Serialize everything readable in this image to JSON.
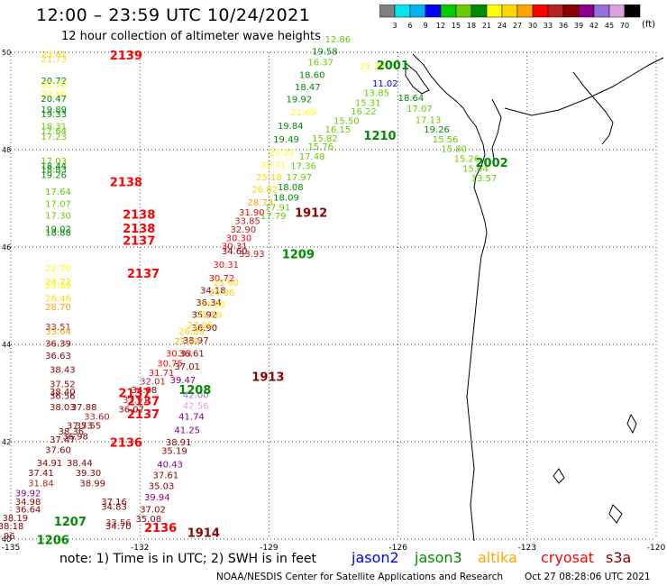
{
  "title": "12:00 – 23:59 UTC 10/24/2021",
  "subtitle": "12 hour collection of altimeter wave heights",
  "unit": "(ft)",
  "color_scale": {
    "labels": [
      "3",
      "6",
      "9",
      "12",
      "15",
      "18",
      "21",
      "24",
      "27",
      "30",
      "33",
      "36",
      "39",
      "42",
      "45",
      "70"
    ],
    "colors": [
      "#808080",
      "#00e5ee",
      "#00b2ee",
      "#0000ff",
      "#00cd00",
      "#66cd00",
      "#008b00",
      "#ffff00",
      "#ffd700",
      "#ffa500",
      "#ff0000",
      "#b22222",
      "#8b0000",
      "#8b008b",
      "#9370db",
      "#dda0dd",
      "#000000"
    ]
  },
  "axes": {
    "lon_labels": [
      "-135",
      "-132",
      "-129",
      "-126",
      "-123",
      "-120"
    ],
    "lat_labels": [
      "50",
      "48",
      "46",
      "44",
      "42",
      "40"
    ]
  },
  "note": "note:  1) Time is in UTC;  2) SWH is in feet",
  "satellites": [
    {
      "name": "jason2",
      "color": "#0000ff"
    },
    {
      "name": "jason3",
      "color": "#008b00"
    },
    {
      "name": "altika",
      "color": "#ffa500"
    },
    {
      "name": "cryosat",
      "color": "#ff0000"
    },
    {
      "name": "s3a",
      "color": "#8b0000"
    }
  ],
  "credit": "NOAA/NESDIS Center for Satellite Applications and Research",
  "timestamp": "Oct 27 08:28:06 UTC 2021",
  "observations": [
    {
      "lon": -134.3,
      "lat": 49.9,
      "v": "23.61",
      "c": "#ffd700"
    },
    {
      "lon": -134.3,
      "lat": 49.8,
      "v": "21.73",
      "c": "#ffd700"
    },
    {
      "lon": -134.3,
      "lat": 49.35,
      "v": "20.72",
      "c": "#008b00"
    },
    {
      "lon": -134.3,
      "lat": 49.27,
      "v": "22.70",
      "c": "#ffff00"
    },
    {
      "lon": -134.3,
      "lat": 49.07,
      "v": "22.56",
      "c": "#ffff00"
    },
    {
      "lon": -134.3,
      "lat": 48.98,
      "v": "20.47",
      "c": "#008b00"
    },
    {
      "lon": -134.3,
      "lat": 48.76,
      "v": "19.89",
      "c": "#008b00"
    },
    {
      "lon": -134.3,
      "lat": 48.67,
      "v": "19.33",
      "c": "#008b00"
    },
    {
      "lon": -134.3,
      "lat": 48.42,
      "v": "18.31",
      "c": "#66cd00"
    },
    {
      "lon": -134.3,
      "lat": 48.32,
      "v": "17.64",
      "c": "#66cd00"
    },
    {
      "lon": -134.3,
      "lat": 48.2,
      "v": "17.23",
      "c": "#66cd00"
    },
    {
      "lon": -134.3,
      "lat": 47.7,
      "v": "17.03",
      "c": "#66cd00"
    },
    {
      "lon": -134.3,
      "lat": 47.6,
      "v": "18.44",
      "c": "#008b00"
    },
    {
      "lon": -134.3,
      "lat": 47.53,
      "v": "18.83",
      "c": "#008b00"
    },
    {
      "lon": -134.3,
      "lat": 47.42,
      "v": "19.26",
      "c": "#008b00"
    },
    {
      "lon": -134.2,
      "lat": 47.07,
      "v": "17.64",
      "c": "#66cd00"
    },
    {
      "lon": -134.2,
      "lat": 46.82,
      "v": "17.07",
      "c": "#66cd00"
    },
    {
      "lon": -134.2,
      "lat": 46.58,
      "v": "17.30",
      "c": "#66cd00"
    },
    {
      "lon": -134.2,
      "lat": 46.31,
      "v": "19.02",
      "c": "#008b00"
    },
    {
      "lon": -134.2,
      "lat": 46.23,
      "v": "18.88",
      "c": "#008b00"
    },
    {
      "lon": -134.2,
      "lat": 45.5,
      "v": "22.79",
      "c": "#ffff00"
    },
    {
      "lon": -134.2,
      "lat": 45.22,
      "v": "24.72",
      "c": "#ffd700"
    },
    {
      "lon": -134.2,
      "lat": 45.15,
      "v": "23.89",
      "c": "#ffff00"
    },
    {
      "lon": -134.2,
      "lat": 44.88,
      "v": "26.46",
      "c": "#ffd700"
    },
    {
      "lon": -134.2,
      "lat": 44.7,
      "v": "28.70",
      "c": "#ffa500"
    },
    {
      "lon": -134.2,
      "lat": 44.3,
      "v": "33.51",
      "c": "#b22222"
    },
    {
      "lon": -134.2,
      "lat": 44.2,
      "v": "33.64",
      "c": "#ffa500"
    },
    {
      "lon": -134.2,
      "lat": 43.95,
      "v": "36.39",
      "c": "#8b0000"
    },
    {
      "lon": -134.2,
      "lat": 43.7,
      "v": "36.63",
      "c": "#8b0000"
    },
    {
      "lon": -134.1,
      "lat": 43.42,
      "v": "38.43",
      "c": "#8b0000"
    },
    {
      "lon": -134.1,
      "lat": 43.12,
      "v": "37.52",
      "c": "#8b0000"
    },
    {
      "lon": -134.1,
      "lat": 42.96,
      "v": "38.40",
      "c": "#8b0000"
    },
    {
      "lon": -134.1,
      "lat": 42.88,
      "v": "36.56",
      "c": "#8b0000"
    },
    {
      "lon": -134.1,
      "lat": 42.65,
      "v": "38.03",
      "c": "#8b0000"
    },
    {
      "lon": -133.6,
      "lat": 42.65,
      "v": "37.88",
      "c": "#8b0000"
    },
    {
      "lon": -133.3,
      "lat": 42.45,
      "v": "33.60",
      "c": "#b22222"
    },
    {
      "lon": -133.7,
      "lat": 42.27,
      "v": "37.73",
      "c": "#8b0000"
    },
    {
      "lon": -133.5,
      "lat": 42.27,
      "v": "35.55",
      "c": "#8b0000"
    },
    {
      "lon": -133.9,
      "lat": 42.15,
      "v": "38.36",
      "c": "#8b0000"
    },
    {
      "lon": -133.8,
      "lat": 42.05,
      "v": "36.98",
      "c": "#8b0000"
    },
    {
      "lon": -134.1,
      "lat": 41.98,
      "v": "37.47",
      "c": "#8b0000"
    },
    {
      "lon": -134.2,
      "lat": 41.77,
      "v": "37.60",
      "c": "#8b0000"
    },
    {
      "lon": -134.4,
      "lat": 41.5,
      "v": "34.91",
      "c": "#8b0000"
    },
    {
      "lon": -133.7,
      "lat": 41.5,
      "v": "38.44",
      "c": "#8b0000"
    },
    {
      "lon": -134.6,
      "lat": 41.3,
      "v": "37.41",
      "c": "#8b0000"
    },
    {
      "lon": -133.5,
      "lat": 41.3,
      "v": "39.30",
      "c": "#8b0000"
    },
    {
      "lon": -134.6,
      "lat": 41.08,
      "v": "31.84",
      "c": "#b22222"
    },
    {
      "lon": -133.4,
      "lat": 41.08,
      "v": "38.99",
      "c": "#8b0000"
    },
    {
      "lon": -134.9,
      "lat": 40.88,
      "v": "39.92",
      "c": "#8b008b"
    },
    {
      "lon": -134.9,
      "lat": 40.7,
      "v": "34.98",
      "c": "#8b0000"
    },
    {
      "lon": -132.9,
      "lat": 40.7,
      "v": "37.16",
      "c": "#8b0000"
    },
    {
      "lon": -134.9,
      "lat": 40.55,
      "v": "36.64",
      "c": "#8b0000"
    },
    {
      "lon": -132.9,
      "lat": 40.6,
      "v": "34.83",
      "c": "#8b0000"
    },
    {
      "lon": -135.2,
      "lat": 40.37,
      "v": "38.19",
      "c": "#8b0000"
    },
    {
      "lon": -135.3,
      "lat": 40.2,
      "v": "38.18",
      "c": "#8b0000"
    },
    {
      "lon": -132.8,
      "lat": 40.28,
      "v": "33.56",
      "c": "#b22222"
    },
    {
      "lon": -135.5,
      "lat": 40.0,
      "v": "34.96",
      "c": "#8b0000"
    },
    {
      "lon": -132.8,
      "lat": 40.2,
      "v": "34.70",
      "c": "#8b0000"
    },
    {
      "lon": -127.7,
      "lat": 50.2,
      "v": "12.86",
      "c": "#66cd00"
    },
    {
      "lon": -128.0,
      "lat": 49.95,
      "v": "19.58",
      "c": "#008b00"
    },
    {
      "lon": -128.1,
      "lat": 49.73,
      "v": "16.37",
      "c": "#66cd00"
    },
    {
      "lon": -128.3,
      "lat": 49.47,
      "v": "18.60",
      "c": "#008b00"
    },
    {
      "lon": -128.4,
      "lat": 49.22,
      "v": "18.47",
      "c": "#008b00"
    },
    {
      "lon": -128.6,
      "lat": 48.97,
      "v": "19.92",
      "c": "#008b00"
    },
    {
      "lon": -128.5,
      "lat": 48.7,
      "v": "21.69",
      "c": "#ffff00"
    },
    {
      "lon": -128.8,
      "lat": 48.43,
      "v": "19.84",
      "c": "#008b00"
    },
    {
      "lon": -128.9,
      "lat": 48.15,
      "v": "19.49",
      "c": "#008b00"
    },
    {
      "lon": -129.0,
      "lat": 47.88,
      "v": "22.22",
      "c": "#ffff00"
    },
    {
      "lon": -129.2,
      "lat": 47.62,
      "v": "22.71",
      "c": "#ffff00"
    },
    {
      "lon": -129.3,
      "lat": 47.37,
      "v": "25.18",
      "c": "#ffd700"
    },
    {
      "lon": -129.4,
      "lat": 47.12,
      "v": "26.82",
      "c": "#ffd700"
    },
    {
      "lon": -129.5,
      "lat": 46.85,
      "v": "28.73",
      "c": "#ffa500"
    },
    {
      "lon": -129.7,
      "lat": 46.65,
      "v": "31.90",
      "c": "#ff0000"
    },
    {
      "lon": -129.8,
      "lat": 46.47,
      "v": "33.85",
      "c": "#b22222"
    },
    {
      "lon": -129.9,
      "lat": 46.3,
      "v": "32.90",
      "c": "#b22222"
    },
    {
      "lon": -130.0,
      "lat": 46.12,
      "v": "30.30",
      "c": "#ff0000"
    },
    {
      "lon": -130.1,
      "lat": 45.95,
      "v": "30.31",
      "c": "#ff0000"
    },
    {
      "lon": -130.1,
      "lat": 45.85,
      "v": "34.60",
      "c": "#8b0000"
    },
    {
      "lon": -130.3,
      "lat": 45.57,
      "v": "30.31",
      "c": "#ff0000"
    },
    {
      "lon": -130.4,
      "lat": 45.3,
      "v": "30.72",
      "c": "#ff0000"
    },
    {
      "lon": -130.6,
      "lat": 45.05,
      "v": "34.18",
      "c": "#8b0000"
    },
    {
      "lon": -130.7,
      "lat": 44.8,
      "v": "36.34",
      "c": "#8b0000"
    },
    {
      "lon": -130.8,
      "lat": 44.55,
      "v": "35.92",
      "c": "#8b0000"
    },
    {
      "lon": -130.8,
      "lat": 44.28,
      "v": "36.90",
      "c": "#8b0000"
    },
    {
      "lon": -131.0,
      "lat": 44.02,
      "v": "38.97",
      "c": "#8b0000"
    },
    {
      "lon": -131.1,
      "lat": 43.75,
      "v": "36.61",
      "c": "#8b0000"
    },
    {
      "lon": -131.2,
      "lat": 43.48,
      "v": "37.01",
      "c": "#8b0000"
    },
    {
      "lon": -131.3,
      "lat": 43.2,
      "v": "39.47",
      "c": "#8b008b"
    },
    {
      "lon": -131.0,
      "lat": 42.9,
      "v": "42.00",
      "c": "#9370db"
    },
    {
      "lon": -131.0,
      "lat": 42.68,
      "v": "42.56",
      "c": "#dda0dd"
    },
    {
      "lon": -131.1,
      "lat": 42.45,
      "v": "41.74",
      "c": "#8b008b"
    },
    {
      "lon": -131.2,
      "lat": 42.18,
      "v": "41.25",
      "c": "#8b008b"
    },
    {
      "lon": -131.4,
      "lat": 41.93,
      "v": "38.91",
      "c": "#8b0000"
    },
    {
      "lon": -131.5,
      "lat": 41.75,
      "v": "35.19",
      "c": "#8b0000"
    },
    {
      "lon": -131.6,
      "lat": 41.47,
      "v": "40.43",
      "c": "#8b008b"
    },
    {
      "lon": -131.7,
      "lat": 41.25,
      "v": "37.61",
      "c": "#8b0000"
    },
    {
      "lon": -131.8,
      "lat": 41.03,
      "v": "35.03",
      "c": "#8b0000"
    },
    {
      "lon": -131.9,
      "lat": 40.8,
      "v": "39.94",
      "c": "#8b008b"
    },
    {
      "lon": -132.0,
      "lat": 40.55,
      "v": "37.02",
      "c": "#8b0000"
    },
    {
      "lon": -132.1,
      "lat": 40.35,
      "v": "35.08",
      "c": "#8b0000"
    },
    {
      "lon": -129.7,
      "lat": 45.8,
      "v": "33.93",
      "c": "#b22222"
    },
    {
      "lon": -130.3,
      "lat": 45.2,
      "v": "25.60",
      "c": "#ffd700"
    },
    {
      "lon": -130.4,
      "lat": 45.0,
      "v": "24.96",
      "c": "#ffd700"
    },
    {
      "lon": -130.6,
      "lat": 44.75,
      "v": "23.83",
      "c": "#ffff00"
    },
    {
      "lon": -130.7,
      "lat": 44.55,
      "v": "25.50",
      "c": "#ffd700"
    },
    {
      "lon": -130.9,
      "lat": 44.33,
      "v": "27.00",
      "c": "#ffd700"
    },
    {
      "lon": -131.1,
      "lat": 44.2,
      "v": "26.89",
      "c": "#ffd700"
    },
    {
      "lon": -131.2,
      "lat": 44.0,
      "v": "27.82",
      "c": "#ffa500"
    },
    {
      "lon": -131.4,
      "lat": 43.75,
      "v": "30.33",
      "c": "#ff0000"
    },
    {
      "lon": -131.6,
      "lat": 43.55,
      "v": "30.75",
      "c": "#ff0000"
    },
    {
      "lon": -131.8,
      "lat": 43.35,
      "v": "31.71",
      "c": "#ff0000"
    },
    {
      "lon": -132.0,
      "lat": 43.18,
      "v": "32.01",
      "c": "#b22222"
    },
    {
      "lon": -132.2,
      "lat": 43.0,
      "v": "34.08",
      "c": "#8b0000"
    },
    {
      "lon": -132.4,
      "lat": 42.8,
      "v": "33.91",
      "c": "#b22222"
    },
    {
      "lon": -132.5,
      "lat": 42.6,
      "v": "36.07",
      "c": "#8b0000"
    },
    {
      "lon": -126.9,
      "lat": 49.65,
      "v": "21.35",
      "c": "#ffff00"
    },
    {
      "lon": -126.6,
      "lat": 49.3,
      "v": "11.02",
      "c": "#0000ff"
    },
    {
      "lon": -126.8,
      "lat": 49.1,
      "v": "13.85",
      "c": "#66cd00"
    },
    {
      "lon": -127.0,
      "lat": 48.9,
      "v": "15.31",
      "c": "#66cd00"
    },
    {
      "lon": -127.1,
      "lat": 48.72,
      "v": "16.22",
      "c": "#66cd00"
    },
    {
      "lon": -127.5,
      "lat": 48.53,
      "v": "15.50",
      "c": "#66cd00"
    },
    {
      "lon": -127.7,
      "lat": 48.35,
      "v": "16.15",
      "c": "#66cd00"
    },
    {
      "lon": -128.0,
      "lat": 48.17,
      "v": "15.82",
      "c": "#66cd00"
    },
    {
      "lon": -128.1,
      "lat": 48.0,
      "v": "15.76",
      "c": "#66cd00"
    },
    {
      "lon": -128.3,
      "lat": 47.8,
      "v": "17.48",
      "c": "#66cd00"
    },
    {
      "lon": -128.5,
      "lat": 47.6,
      "v": "17.36",
      "c": "#66cd00"
    },
    {
      "lon": -128.6,
      "lat": 47.37,
      "v": "17.97",
      "c": "#66cd00"
    },
    {
      "lon": -128.8,
      "lat": 47.17,
      "v": "18.08",
      "c": "#008b00"
    },
    {
      "lon": -128.9,
      "lat": 46.95,
      "v": "18.09",
      "c": "#008b00"
    },
    {
      "lon": -129.1,
      "lat": 46.75,
      "v": "17.91",
      "c": "#66cd00"
    },
    {
      "lon": -129.2,
      "lat": 46.57,
      "v": "17.79",
      "c": "#66cd00"
    },
    {
      "lon": -126.0,
      "lat": 49.0,
      "v": "18.64",
      "c": "#008b00"
    },
    {
      "lon": -125.8,
      "lat": 48.78,
      "v": "17.07",
      "c": "#66cd00"
    },
    {
      "lon": -125.6,
      "lat": 48.55,
      "v": "17.13",
      "c": "#66cd00"
    },
    {
      "lon": -125.4,
      "lat": 48.35,
      "v": "19.26",
      "c": "#008b00"
    },
    {
      "lon": -125.2,
      "lat": 48.15,
      "v": "15.56",
      "c": "#66cd00"
    },
    {
      "lon": -125.0,
      "lat": 47.95,
      "v": "15.80",
      "c": "#66cd00"
    },
    {
      "lon": -124.7,
      "lat": 47.75,
      "v": "15.26",
      "c": "#66cd00"
    },
    {
      "lon": -124.5,
      "lat": 47.55,
      "v": "15.04",
      "c": "#66cd00"
    },
    {
      "lon": -124.3,
      "lat": 47.35,
      "v": "13.57",
      "c": "#66cd00"
    }
  ],
  "pass_labels": [
    {
      "lon": -132.7,
      "lat": 49.85,
      "t": "2139",
      "c": "#ff0000"
    },
    {
      "lon": -132.7,
      "lat": 47.25,
      "t": "2138",
      "c": "#ff0000"
    },
    {
      "lon": -132.4,
      "lat": 46.58,
      "t": "2138",
      "c": "#ff0000"
    },
    {
      "lon": -132.4,
      "lat": 46.3,
      "t": "2138",
      "c": "#ff0000"
    },
    {
      "lon": -132.4,
      "lat": 46.05,
      "t": "2137",
      "c": "#ff0000"
    },
    {
      "lon": -132.3,
      "lat": 45.37,
      "t": "2137",
      "c": "#ff0000"
    },
    {
      "lon": -132.5,
      "lat": 42.92,
      "t": "2137",
      "c": "#ff0000"
    },
    {
      "lon": -132.3,
      "lat": 42.75,
      "t": "2137",
      "c": "#ff0000"
    },
    {
      "lon": -132.3,
      "lat": 42.48,
      "t": "2137",
      "c": "#ff0000"
    },
    {
      "lon": -132.7,
      "lat": 41.9,
      "t": "2136",
      "c": "#ff0000"
    },
    {
      "lon": -131.9,
      "lat": 40.15,
      "t": "2136",
      "c": "#ff0000"
    },
    {
      "lon": -126.5,
      "lat": 49.65,
      "t": "2001",
      "c": "#008b00"
    },
    {
      "lon": -126.8,
      "lat": 48.2,
      "t": "1210",
      "c": "#008b00"
    },
    {
      "lon": -124.2,
      "lat": 47.65,
      "t": "2002",
      "c": "#008b00"
    },
    {
      "lon": -128.4,
      "lat": 46.62,
      "t": "1912",
      "c": "#8b0000"
    },
    {
      "lon": -128.7,
      "lat": 45.77,
      "t": "1209",
      "c": "#008b00"
    },
    {
      "lon": -131.1,
      "lat": 42.98,
      "t": "1208",
      "c": "#008b00"
    },
    {
      "lon": -129.4,
      "lat": 43.25,
      "t": "1913",
      "c": "#8b0000"
    },
    {
      "lon": -134.0,
      "lat": 40.28,
      "t": "1207",
      "c": "#008b00"
    },
    {
      "lon": -134.4,
      "lat": 39.9,
      "t": "1206",
      "c": "#008b00"
    },
    {
      "lon": -130.9,
      "lat": 40.05,
      "t": "1914",
      "c": "#8b0000"
    }
  ]
}
